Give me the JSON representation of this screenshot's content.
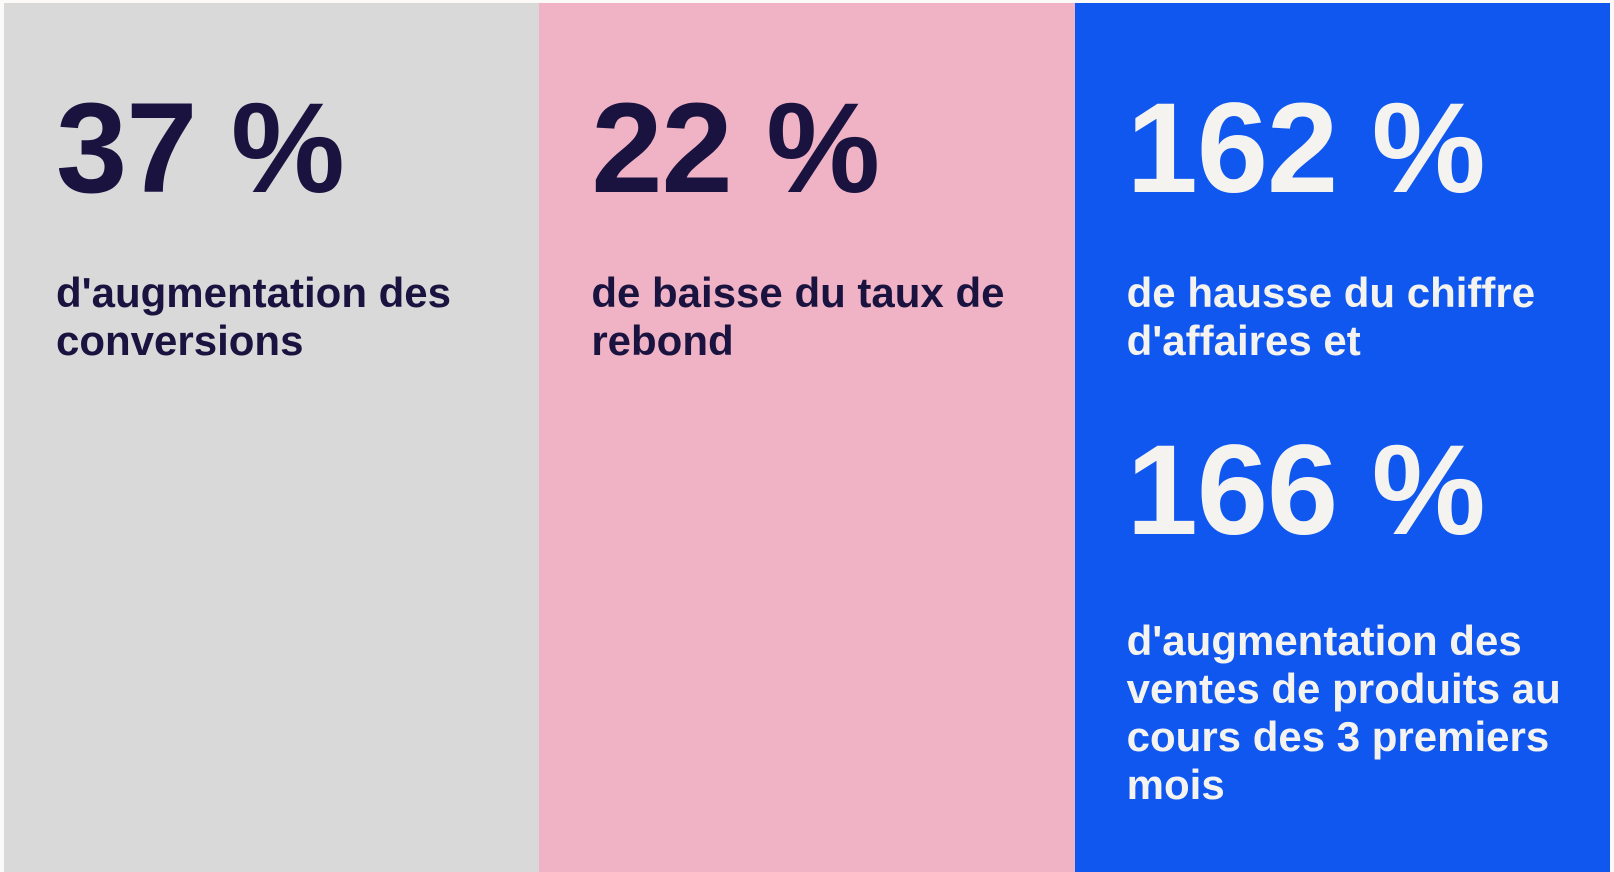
{
  "page": {
    "background": "#fbfaf8",
    "dark_text_color": "#1a1340",
    "light_text_color": "#f4f3f0"
  },
  "stats_columns": [
    {
      "id": "conversions",
      "background": "#d9d9d9",
      "text_color": "#1a1340",
      "stats": [
        {
          "value": "37 %",
          "caption": "d'augmentation des conversions"
        }
      ]
    },
    {
      "id": "bounce-rate",
      "background": "#f0b3c5",
      "text_color": "#1a1340",
      "stats": [
        {
          "value": "22 %",
          "caption": "de baisse du taux de rebond"
        }
      ]
    },
    {
      "id": "revenue-and-sales",
      "background": "#0f57ee",
      "text_color": "#f4f3f0",
      "stats": [
        {
          "value": "162 %",
          "caption": "de hausse du chiffre d'affaires et"
        },
        {
          "value": "166 %",
          "caption": "d'augmentation des ventes de produits au cours des 3 premiers mois"
        }
      ]
    }
  ]
}
